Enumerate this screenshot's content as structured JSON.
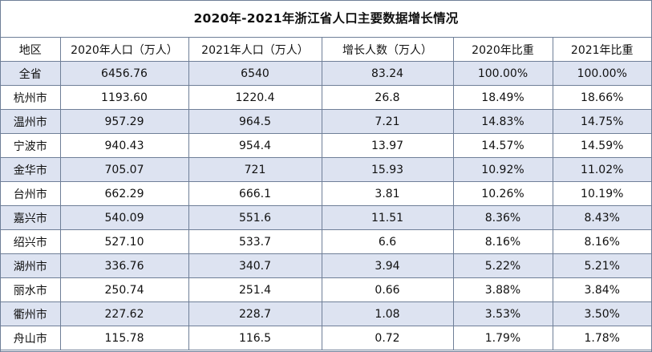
{
  "title": "2020年-2021年浙江省人口主要数据增长情况",
  "columns": [
    "地区",
    "2020年人口（万人）",
    "2021年人口（万人）",
    "增长人数（万人）",
    "2020年比重",
    "2021年比重"
  ],
  "rows": [
    [
      "全省",
      "6456.76",
      "6540",
      "83.24",
      "100.00%",
      "100.00%"
    ],
    [
      "杭州市",
      "1193.60",
      "1220.4",
      "26.8",
      "18.49%",
      "18.66%"
    ],
    [
      "温州市",
      "957.29",
      "964.5",
      "7.21",
      "14.83%",
      "14.75%"
    ],
    [
      "宁波市",
      "940.43",
      "954.4",
      "13.97",
      "14.57%",
      "14.59%"
    ],
    [
      "金华市",
      "705.07",
      "721",
      "15.93",
      "10.92%",
      "11.02%"
    ],
    [
      "台州市",
      "662.29",
      "666.1",
      "3.81",
      "10.26%",
      "10.19%"
    ],
    [
      "嘉兴市",
      "540.09",
      "551.6",
      "11.51",
      "8.36%",
      "8.43%"
    ],
    [
      "绍兴市",
      "527.10",
      "533.7",
      "6.6",
      "8.16%",
      "8.16%"
    ],
    [
      "湖州市",
      "336.76",
      "340.7",
      "3.94",
      "5.22%",
      "5.21%"
    ],
    [
      "丽水市",
      "250.74",
      "251.4",
      "0.66",
      "3.88%",
      "3.84%"
    ],
    [
      "衢州市",
      "227.62",
      "228.7",
      "1.08",
      "3.53%",
      "3.50%"
    ],
    [
      "舟山市",
      "115.78",
      "116.5",
      "0.72",
      "1.79%",
      "1.78%"
    ]
  ],
  "colors": {
    "stripe": "#dde3f1",
    "border": "#6f7f98"
  }
}
